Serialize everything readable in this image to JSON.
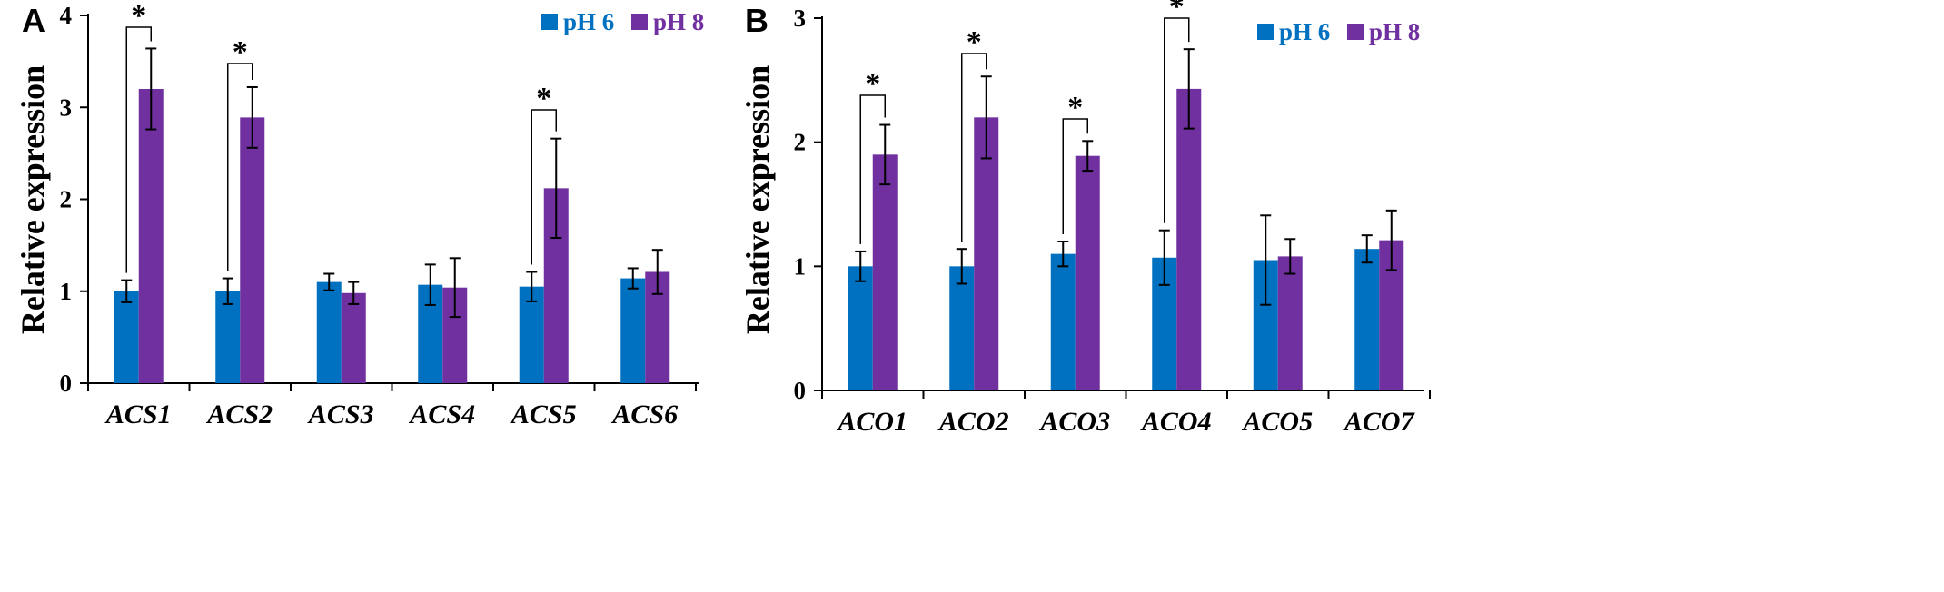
{
  "colors": {
    "ph6": "#0070C0",
    "ph8": "#7030A0",
    "axis": "#000000"
  },
  "chart_data": [
    {
      "panel": "A",
      "type": "bar",
      "ylabel": "Relative expression",
      "ylim": [
        0,
        4
      ],
      "yticks": [
        "0",
        "1",
        "2",
        "3",
        "4"
      ],
      "categories": [
        "ACS1",
        "ACS2",
        "ACS3",
        "ACS4",
        "ACS5",
        "ACS6"
      ],
      "series": [
        {
          "name": "pH 6",
          "values": [
            1.0,
            1.0,
            1.1,
            1.07,
            1.05,
            1.14
          ],
          "errors": [
            0.12,
            0.14,
            0.09,
            0.22,
            0.16,
            0.11
          ]
        },
        {
          "name": "pH 8",
          "values": [
            3.2,
            2.89,
            0.98,
            1.04,
            2.12,
            1.21
          ],
          "errors": [
            0.44,
            0.33,
            0.12,
            0.32,
            0.54,
            0.24
          ]
        }
      ],
      "significance": [
        {
          "category": "ACS1",
          "label": "*"
        },
        {
          "category": "ACS2",
          "label": "*"
        },
        {
          "category": "ACS5",
          "label": "*"
        }
      ]
    },
    {
      "panel": "B",
      "type": "bar",
      "ylabel": "Relative expression",
      "ylim": [
        0,
        3
      ],
      "yticks": [
        "0",
        "1",
        "2",
        "3"
      ],
      "categories": [
        "ACO1",
        "ACO2",
        "ACO3",
        "ACO4",
        "ACO5",
        "ACO7"
      ],
      "series": [
        {
          "name": "pH 6",
          "values": [
            1.0,
            1.0,
            1.1,
            1.07,
            1.05,
            1.14
          ],
          "errors": [
            0.12,
            0.14,
            0.1,
            0.22,
            0.36,
            0.11
          ]
        },
        {
          "name": "pH 8",
          "values": [
            1.9,
            2.2,
            1.89,
            2.43,
            1.08,
            1.21
          ],
          "errors": [
            0.24,
            0.33,
            0.12,
            0.32,
            0.14,
            0.24
          ]
        }
      ],
      "significance": [
        {
          "category": "ACO1",
          "label": "*"
        },
        {
          "category": "ACO2",
          "label": "*"
        },
        {
          "category": "ACO3",
          "label": "*"
        },
        {
          "category": "ACO4",
          "label": "*"
        }
      ]
    }
  ]
}
